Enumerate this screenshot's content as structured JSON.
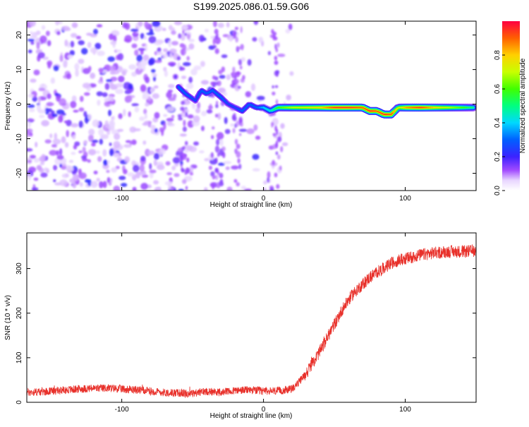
{
  "title": "S199.2025.086.01.59.G06",
  "chart_data": [
    {
      "type": "heatmap",
      "xlabel": "Height of straight line (km)",
      "ylabel": "Frequency (Hz)",
      "xlim": [
        -167,
        150
      ],
      "ylim": [
        -25,
        24
      ],
      "x_ticks": [
        "-100",
        "0",
        "100"
      ],
      "x_tick_values": [
        -100,
        0,
        100
      ],
      "y_ticks": [
        "20",
        "10",
        "0",
        "-10",
        "-20"
      ],
      "y_tick_values": [
        20,
        10,
        0,
        -10,
        -20
      ],
      "colorbar": {
        "label": "Normalized spectral amplitude",
        "range": [
          0,
          1
        ],
        "ticks": [
          "0.0",
          "0.2",
          "0.4",
          "0.6",
          "0.8"
        ],
        "tick_values": [
          0.0,
          0.2,
          0.4,
          0.6,
          0.8
        ],
        "colormap": "white-violet-blue-cyan-green-yellow-red"
      },
      "ridge": {
        "x": [
          -60,
          -55,
          -48,
          -44,
          -40,
          -36,
          -30,
          -25,
          -20,
          -15,
          -10,
          -5,
          0,
          5,
          10,
          20,
          30,
          40,
          50,
          60,
          70,
          75,
          80,
          85,
          90,
          95,
          100,
          110,
          120,
          130,
          140,
          148
        ],
        "y": [
          5,
          3,
          1,
          4,
          3,
          4,
          2,
          0,
          -1,
          -2,
          0,
          -1,
          -1,
          -2,
          -1,
          -1,
          -1,
          -1,
          -1,
          -1,
          -1,
          -2,
          -2,
          -3,
          -3,
          -1,
          -1,
          -1,
          -1,
          -1,
          -1,
          -1
        ],
        "amplitude": [
          0.3,
          0.3,
          0.25,
          0.3,
          0.3,
          0.3,
          0.3,
          0.25,
          0.25,
          0.3,
          0.3,
          0.3,
          0.4,
          0.45,
          0.6,
          0.7,
          0.75,
          0.8,
          0.95,
          0.95,
          0.9,
          0.95,
          0.9,
          0.95,
          0.9,
          0.7,
          0.85,
          0.95,
          0.8,
          0.7,
          0.6,
          0.5
        ]
      }
    },
    {
      "type": "line",
      "xlabel": "Height of straight line (km)",
      "ylabel": "SNR (10 * v/v)",
      "xlim": [
        -167,
        150
      ],
      "ylim": [
        0,
        380
      ],
      "x_ticks": [
        "-100",
        "0",
        "100"
      ],
      "x_tick_values": [
        -100,
        0,
        100
      ],
      "y_ticks": [
        "0",
        "100",
        "200",
        "300"
      ],
      "y_tick_values": [
        0,
        100,
        200,
        300
      ],
      "color": "#e8302a",
      "series": [
        {
          "x": [
            -167,
            -150,
            -130,
            -110,
            -90,
            -70,
            -50,
            -40,
            -30,
            -20,
            -10,
            0,
            10,
            20,
            25,
            30,
            35,
            40,
            45,
            50,
            55,
            60,
            65,
            70,
            75,
            80,
            85,
            90,
            95,
            100,
            110,
            120,
            130,
            140,
            150
          ],
          "values": [
            22,
            25,
            30,
            32,
            28,
            22,
            20,
            25,
            22,
            26,
            28,
            25,
            25,
            30,
            45,
            65,
            90,
            115,
            145,
            175,
            205,
            230,
            250,
            265,
            280,
            292,
            300,
            312,
            318,
            322,
            330,
            335,
            338,
            338,
            340
          ]
        }
      ]
    }
  ]
}
